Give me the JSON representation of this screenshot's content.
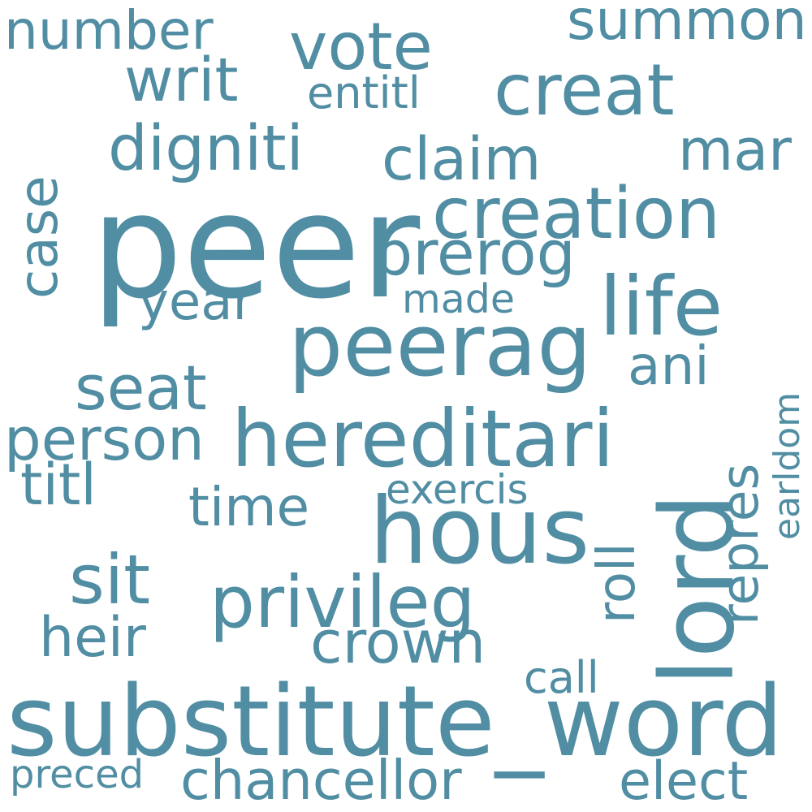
{
  "cloud": {
    "color": "#518ea3",
    "background": "#ffffff",
    "words": [
      {
        "key": "peer",
        "text": "peer"
      },
      {
        "key": "substitute_word",
        "text": "substitute_word"
      },
      {
        "key": "hous",
        "text": "hous"
      },
      {
        "key": "lord",
        "text": "lord"
      },
      {
        "key": "peerag",
        "text": "peerag"
      },
      {
        "key": "hereditari",
        "text": "hereditari"
      },
      {
        "key": "life",
        "text": "life"
      },
      {
        "key": "creation",
        "text": "creation"
      },
      {
        "key": "creat",
        "text": "creat"
      },
      {
        "key": "privileg",
        "text": "privileg"
      },
      {
        "key": "chancellor",
        "text": "chancellor"
      },
      {
        "key": "summon",
        "text": "summon"
      },
      {
        "key": "vote",
        "text": "vote"
      },
      {
        "key": "dignit",
        "text": "digniti"
      },
      {
        "key": "claim",
        "text": "claim"
      },
      {
        "key": "number",
        "text": "number"
      },
      {
        "key": "writ",
        "text": "writ"
      },
      {
        "key": "prerog",
        "text": "prerog"
      },
      {
        "key": "person",
        "text": "person"
      },
      {
        "key": "seat",
        "text": "seat"
      },
      {
        "key": "sit",
        "text": "sit"
      },
      {
        "key": "crown",
        "text": "crown"
      },
      {
        "key": "elect",
        "text": "elect"
      },
      {
        "key": "mar",
        "text": "mar"
      },
      {
        "key": "case",
        "text": "case"
      },
      {
        "key": "year",
        "text": "year"
      },
      {
        "key": "titl",
        "text": "titl"
      },
      {
        "key": "heir",
        "text": "heir"
      },
      {
        "key": "time",
        "text": "time"
      },
      {
        "key": "ani",
        "text": "ani"
      },
      {
        "key": "repres",
        "text": "repres"
      },
      {
        "key": "roll",
        "text": "roll"
      },
      {
        "key": "call",
        "text": "call"
      },
      {
        "key": "entitl",
        "text": "entitl"
      },
      {
        "key": "made",
        "text": "made"
      },
      {
        "key": "exercis",
        "text": "exercis"
      },
      {
        "key": "preced",
        "text": "preced"
      },
      {
        "key": "earldom",
        "text": "earldom"
      }
    ]
  }
}
